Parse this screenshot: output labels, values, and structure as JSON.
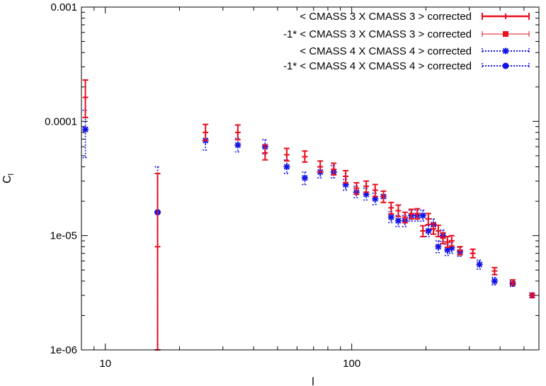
{
  "chart_data": {
    "type": "scatter",
    "title": "",
    "xlabel": "l",
    "ylabel": "C",
    "ylabel_subscript": "l",
    "xscale": "log",
    "yscale": "log",
    "xlim": [
      8.0,
      575
    ],
    "ylim": [
      1e-06,
      0.001
    ],
    "x_ticks": [
      10,
      100
    ],
    "x_tick_labels": [
      "10",
      "100"
    ],
    "y_ticks": [
      1e-06,
      1e-05,
      0.0001,
      0.001
    ],
    "y_tick_labels": [
      "1e-06",
      "1e-05",
      "0.0001",
      "0.001"
    ],
    "legend_position": "top-right",
    "series": [
      {
        "name": "< CMASS 3 X CMASS 3 > corrected",
        "color": "#e8101e",
        "marker": "plus",
        "line": "solid",
        "points": [
          {
            "x": 8.3,
            "y": 0.000162,
            "lo": 0.000108,
            "hi": 0.00023
          },
          {
            "x": 16.3,
            "y": 8e-06,
            "lo": 1e-06,
            "hi": 3.5e-05
          },
          {
            "x": 25.5,
            "y": 8e-05,
            "lo": 6.8e-05,
            "hi": 9.4e-05
          },
          {
            "x": 34.5,
            "y": 8e-05,
            "lo": 6.9e-05,
            "hi": 9.3e-05
          },
          {
            "x": 44.5,
            "y": 5.3e-05,
            "lo": 4.6e-05,
            "hi": 6.2e-05
          },
          {
            "x": 54.5,
            "y": 5.1e-05,
            "lo": 4.5e-05,
            "hi": 5.8e-05
          },
          {
            "x": 64.5,
            "y": 4.9e-05,
            "lo": 4.4e-05,
            "hi": 5.5e-05
          },
          {
            "x": 74.5,
            "y": 4e-05,
            "lo": 3.6e-05,
            "hi": 4.5e-05
          },
          {
            "x": 84.5,
            "y": 3.8e-05,
            "lo": 3.4e-05,
            "hi": 4.3e-05
          },
          {
            "x": 94.5,
            "y": 3.3e-05,
            "lo": 2.9e-05,
            "hi": 3.7e-05
          },
          {
            "x": 104.5,
            "y": 2.6e-05,
            "lo": 2.3e-05,
            "hi": 2.9e-05
          },
          {
            "x": 114.5,
            "y": 2.7e-05,
            "lo": 2.4e-05,
            "hi": 3e-05
          },
          {
            "x": 124.5,
            "y": 2.5e-05,
            "lo": 2.2e-05,
            "hi": 2.8e-05
          },
          {
            "x": 134.5,
            "y": 2.2e-05,
            "lo": 1.95e-05,
            "hi": 2.45e-05
          },
          {
            "x": 144.5,
            "y": 1.75e-05,
            "lo": 1.55e-05,
            "hi": 1.95e-05
          },
          {
            "x": 154.5,
            "y": 1.65e-05,
            "lo": 1.47e-05,
            "hi": 1.85e-05
          },
          {
            "x": 164.5,
            "y": 1.45e-05,
            "lo": 1.3e-05,
            "hi": 1.6e-05
          },
          {
            "x": 174.5,
            "y": 1.55e-05,
            "lo": 1.4e-05,
            "hi": 1.7e-05
          },
          {
            "x": 184.5,
            "y": 1.55e-05,
            "lo": 1.4e-05,
            "hi": 1.72e-05
          },
          {
            "x": 194.5,
            "y": 1.1e-05,
            "lo": 9.8e-06,
            "hi": 1.22e-05
          },
          {
            "x": 204.5,
            "y": 1.4e-05,
            "lo": 1.25e-05,
            "hi": 1.56e-05
          },
          {
            "x": 214.5,
            "y": 1.15e-05,
            "lo": 1.03e-05,
            "hi": 1.28e-05
          },
          {
            "x": 224.5,
            "y": 1.1e-05,
            "lo": 9.8e-06,
            "hi": 1.23e-05
          },
          {
            "x": 234.5,
            "y": 9.5e-06,
            "lo": 8.5e-06,
            "hi": 1.06e-05
          },
          {
            "x": 244.5,
            "y": 8.8e-06,
            "lo": 7.9e-06,
            "hi": 9.8e-06
          },
          {
            "x": 254.5,
            "y": 9e-06,
            "lo": 8.1e-06,
            "hi": 1e-05
          },
          {
            "x": 275,
            "y": 7.4e-06,
            "lo": 6.8e-06,
            "hi": 8e-06
          },
          {
            "x": 310,
            "y": 7e-06,
            "lo": 6.4e-06,
            "hi": 7.6e-06
          },
          {
            "x": 380,
            "y": 4.9e-06,
            "lo": 4.55e-06,
            "hi": 5.25e-06
          },
          {
            "x": 450,
            "y": 3.9e-06,
            "lo": 3.7e-06,
            "hi": 4.1e-06
          },
          {
            "x": 540,
            "y": 3e-06,
            "lo": 2.88e-06,
            "hi": 3.12e-06
          }
        ]
      },
      {
        "name": "-1* < CMASS 3 X CMASS 3 > corrected",
        "color": "#e8101e",
        "marker": "square",
        "line": "thin",
        "points": []
      },
      {
        "name": "< CMASS 4 X CMASS 4 > corrected",
        "color": "#1414e6",
        "marker": "star",
        "line": "dotted",
        "points": [
          {
            "x": 8.3,
            "y": 8.5e-05,
            "lo": 4.8e-05,
            "hi": 0.000125
          },
          {
            "x": 25.5,
            "y": 6.8e-05,
            "lo": 5.6e-05,
            "hi": 8e-05
          },
          {
            "x": 34.5,
            "y": 6.2e-05,
            "lo": 5.4e-05,
            "hi": 7.1e-05
          },
          {
            "x": 44.5,
            "y": 6e-05,
            "lo": 5.2e-05,
            "hi": 6.9e-05
          },
          {
            "x": 54.5,
            "y": 4e-05,
            "lo": 3.5e-05,
            "hi": 4.6e-05
          },
          {
            "x": 64.5,
            "y": 3.2e-05,
            "lo": 2.8e-05,
            "hi": 3.6e-05
          },
          {
            "x": 74.5,
            "y": 3.6e-05,
            "lo": 3.2e-05,
            "hi": 4e-05
          },
          {
            "x": 84.5,
            "y": 3.6e-05,
            "lo": 3.2e-05,
            "hi": 4.1e-05
          },
          {
            "x": 94.5,
            "y": 2.8e-05,
            "lo": 2.5e-05,
            "hi": 3.1e-05
          },
          {
            "x": 104.5,
            "y": 2.4e-05,
            "lo": 2.15e-05,
            "hi": 2.7e-05
          },
          {
            "x": 114.5,
            "y": 2.3e-05,
            "lo": 2.05e-05,
            "hi": 2.6e-05
          },
          {
            "x": 124.5,
            "y": 2.1e-05,
            "lo": 1.87e-05,
            "hi": 2.35e-05
          },
          {
            "x": 134.5,
            "y": 2.2e-05,
            "lo": 1.96e-05,
            "hi": 2.45e-05
          },
          {
            "x": 144.5,
            "y": 1.45e-05,
            "lo": 1.3e-05,
            "hi": 1.62e-05
          },
          {
            "x": 154.5,
            "y": 1.35e-05,
            "lo": 1.2e-05,
            "hi": 1.5e-05
          },
          {
            "x": 164.5,
            "y": 1.35e-05,
            "lo": 1.2e-05,
            "hi": 1.5e-05
          },
          {
            "x": 174.5,
            "y": 1.5e-05,
            "lo": 1.34e-05,
            "hi": 1.67e-05
          },
          {
            "x": 184.5,
            "y": 1.5e-05,
            "lo": 1.34e-05,
            "hi": 1.67e-05
          },
          {
            "x": 194.5,
            "y": 1.5e-05,
            "lo": 1.34e-05,
            "hi": 1.67e-05
          },
          {
            "x": 204.5,
            "y": 1.1e-05,
            "lo": 9.8e-06,
            "hi": 1.23e-05
          },
          {
            "x": 214.5,
            "y": 1.25e-05,
            "lo": 1.12e-05,
            "hi": 1.4e-05
          },
          {
            "x": 224.5,
            "y": 8e-06,
            "lo": 7.1e-06,
            "hi": 9e-06
          },
          {
            "x": 234.5,
            "y": 1e-05,
            "lo": 8.9e-06,
            "hi": 1.12e-05
          },
          {
            "x": 244.5,
            "y": 7.5e-06,
            "lo": 6.7e-06,
            "hi": 8.4e-06
          },
          {
            "x": 254.5,
            "y": 7.8e-06,
            "lo": 7e-06,
            "hi": 8.7e-06
          },
          {
            "x": 275,
            "y": 7.2e-06,
            "lo": 6.6e-06,
            "hi": 7.9e-06
          },
          {
            "x": 330,
            "y": 5.6e-06,
            "lo": 5.1e-06,
            "hi": 6.1e-06
          },
          {
            "x": 380,
            "y": 4e-06,
            "lo": 3.7e-06,
            "hi": 4.3e-06
          },
          {
            "x": 450,
            "y": 3.8e-06,
            "lo": 3.6e-06,
            "hi": 4e-06
          },
          {
            "x": 540,
            "y": 3e-06,
            "lo": 2.85e-06,
            "hi": 3.15e-06
          }
        ]
      },
      {
        "name": "-1* < CMASS 4 X CMASS 4 > corrected",
        "color": "#1414e6",
        "marker": "circle",
        "line": "dotted",
        "points": [
          {
            "x": 16.3,
            "y": 1.6e-05,
            "lo": 1e-06,
            "hi": 4e-05
          }
        ]
      }
    ]
  }
}
